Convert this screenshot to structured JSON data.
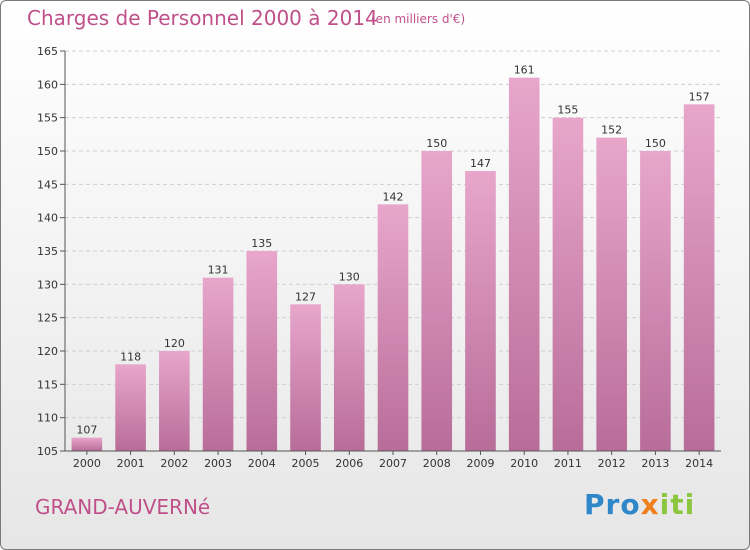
{
  "header": {
    "title": "Charges de Personnel 2000 à 2014",
    "subtitle": "(en milliers d'€)"
  },
  "footer": {
    "commune": "GRAND-AUVERNé",
    "logo": [
      "Pro",
      "x",
      "iti"
    ]
  },
  "colors": {
    "title": "#c0508a",
    "bar_top": "#e8a6cb",
    "bar_bottom": "#b86d99",
    "logo_blue": "#2f86c8",
    "logo_orange": "#f07f1e",
    "logo_green": "#8cc63f"
  },
  "chart_data": {
    "type": "bar",
    "categories": [
      "2000",
      "2001",
      "2002",
      "2003",
      "2004",
      "2005",
      "2006",
      "2007",
      "2008",
      "2009",
      "2010",
      "2011",
      "2012",
      "2013",
      "2014"
    ],
    "values": [
      107,
      118,
      120,
      131,
      135,
      127,
      130,
      142,
      150,
      147,
      161,
      155,
      152,
      150,
      157
    ],
    "ylim": [
      105,
      165
    ],
    "yticks": [
      105,
      110,
      115,
      120,
      125,
      130,
      135,
      140,
      145,
      150,
      155,
      160,
      165
    ],
    "grid": true,
    "legend": "none"
  }
}
